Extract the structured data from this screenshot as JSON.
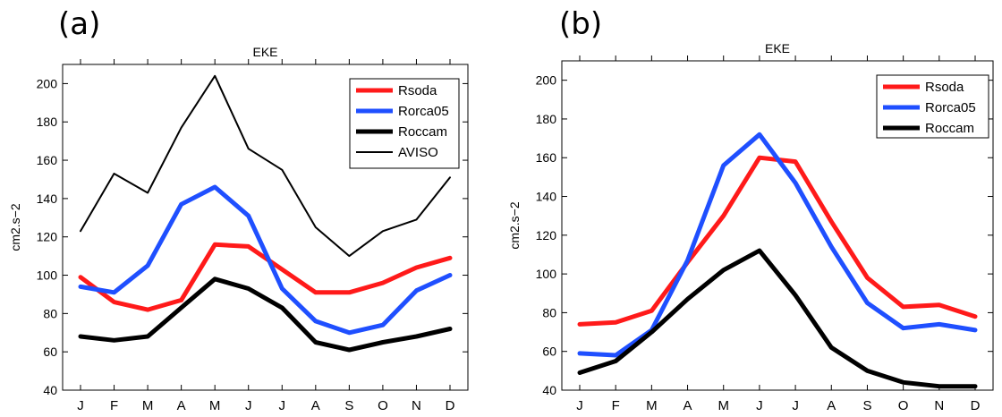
{
  "panels": [
    {
      "tag": "(a)"
    },
    {
      "tag": "(b)"
    }
  ],
  "chart_data": [
    {
      "type": "line",
      "title": "EKE",
      "xlabel": "",
      "ylabel": "cm2.s−2",
      "ylim": [
        40,
        210
      ],
      "yticks": [
        40,
        60,
        80,
        100,
        120,
        140,
        160,
        180,
        200
      ],
      "categories": [
        "J",
        "F",
        "M",
        "A",
        "M",
        "J",
        "J",
        "A",
        "S",
        "O",
        "N",
        "D"
      ],
      "legend_position": "top-right",
      "grid": false,
      "series": [
        {
          "name": "Rsoda",
          "color": "#ff1a1a",
          "width": "thick",
          "values": [
            99,
            86,
            82,
            87,
            116,
            115,
            103,
            91,
            91,
            96,
            104,
            109
          ]
        },
        {
          "name": "Rorca05",
          "color": "#1f4fff",
          "width": "thick",
          "values": [
            94,
            91,
            105,
            137,
            146,
            131,
            93,
            76,
            70,
            74,
            92,
            100
          ]
        },
        {
          "name": "Roccam",
          "color": "#000000",
          "width": "thick",
          "values": [
            68,
            66,
            68,
            83,
            98,
            93,
            83,
            65,
            61,
            65,
            68,
            72
          ]
        },
        {
          "name": "AVISO",
          "color": "#000000",
          "width": "thin",
          "values": [
            123,
            153,
            143,
            177,
            204,
            166,
            155,
            125,
            110,
            123,
            129,
            151
          ]
        }
      ]
    },
    {
      "type": "line",
      "title": "EKE",
      "xlabel": "",
      "ylabel": "cm2.s−2",
      "ylim": [
        40,
        210
      ],
      "yticks": [
        40,
        60,
        80,
        100,
        120,
        140,
        160,
        180,
        200
      ],
      "categories": [
        "J",
        "F",
        "M",
        "A",
        "M",
        "J",
        "J",
        "A",
        "S",
        "O",
        "N",
        "D"
      ],
      "legend_position": "top-right",
      "grid": false,
      "series": [
        {
          "name": "Rsoda",
          "color": "#ff1a1a",
          "width": "thick",
          "values": [
            74,
            75,
            81,
            106,
            130,
            160,
            158,
            127,
            98,
            83,
            84,
            78
          ]
        },
        {
          "name": "Rorca05",
          "color": "#1f4fff",
          "width": "thick",
          "values": [
            59,
            58,
            71,
            107,
            156,
            172,
            147,
            114,
            85,
            72,
            74,
            71
          ]
        },
        {
          "name": "Roccam",
          "color": "#000000",
          "width": "thick",
          "values": [
            49,
            55,
            70,
            87,
            102,
            112,
            89,
            62,
            50,
            44,
            42,
            42
          ]
        }
      ]
    }
  ]
}
